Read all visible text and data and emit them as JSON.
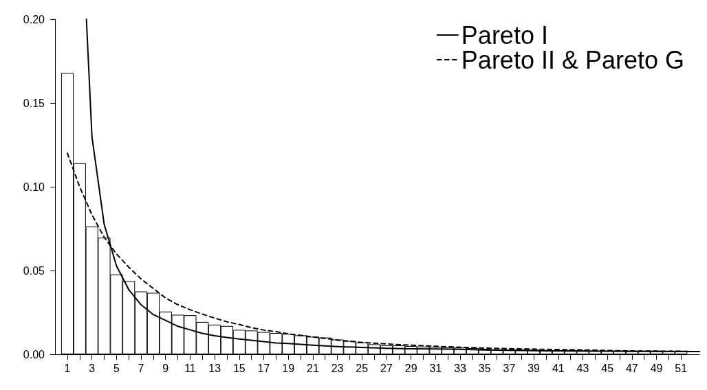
{
  "chart_data": {
    "type": "bar",
    "x": [
      1,
      2,
      3,
      4,
      5,
      6,
      7,
      8,
      9,
      10,
      11,
      12,
      13,
      14,
      15,
      16,
      17,
      18,
      19,
      20,
      21,
      22,
      23,
      24,
      25,
      26,
      27,
      28,
      29,
      30,
      31,
      32,
      33,
      34,
      35,
      36,
      37,
      38,
      39,
      40,
      41,
      42,
      43,
      44,
      45,
      46,
      47,
      48,
      49,
      50,
      51
    ],
    "xlim": [
      -0.4,
      52.5
    ],
    "xticks": [
      1,
      {
        "value": 2,
        "label": null
      },
      3,
      {
        "value": 4,
        "label": null
      },
      5,
      {
        "value": 6,
        "label": null
      },
      7,
      {
        "value": 8,
        "label": null
      },
      9,
      {
        "value": 10,
        "label": null
      },
      11,
      {
        "value": 12,
        "label": null
      },
      13,
      {
        "value": 14,
        "label": null
      },
      15,
      {
        "value": 16,
        "label": null
      },
      17,
      {
        "value": 18,
        "label": null
      },
      19,
      {
        "value": 20,
        "label": null
      },
      21,
      {
        "value": 22,
        "label": null
      },
      23,
      {
        "value": 24,
        "label": null
      },
      25,
      {
        "value": 26,
        "label": null
      },
      27,
      {
        "value": 28,
        "label": null
      },
      29,
      {
        "value": 30,
        "label": null
      },
      31,
      {
        "value": 32,
        "label": null
      },
      33,
      {
        "value": 34,
        "label": null
      },
      35,
      {
        "value": 36,
        "label": null
      },
      37,
      {
        "value": 38,
        "label": null
      },
      39,
      {
        "value": 40,
        "label": null
      },
      41,
      {
        "value": 42,
        "label": null
      },
      43,
      {
        "value": 44,
        "label": null
      },
      45,
      {
        "value": 46,
        "label": null
      },
      47,
      {
        "value": 48,
        "label": null
      },
      49,
      {
        "value": 50,
        "label": null
      },
      51
    ],
    "ylim": [
      0,
      0.2
    ],
    "yticks": [
      {
        "value": 0,
        "label": "0.00"
      },
      {
        "value": 0.05,
        "label": "0.05"
      },
      {
        "value": 0.1,
        "label": "0.10"
      },
      {
        "value": 0.15,
        "label": "0.15"
      },
      {
        "value": 0.2,
        "label": "0.20"
      }
    ],
    "grid": false,
    "legend": "top right",
    "series": [
      {
        "color": "#ffffff",
        "values": [
          0.168,
          0.114,
          0.0763,
          0.0696,
          0.0477,
          0.0438,
          0.0375,
          0.0367,
          0.0255,
          0.0236,
          0.0233,
          0.0193,
          0.0177,
          0.0169,
          0.0146,
          0.0142,
          0.0133,
          0.0127,
          0.0122,
          0.0113,
          0.0105,
          0.01,
          0.0088,
          0.008,
          0.007,
          0.006,
          0.0053,
          0.0053,
          0.0049,
          0.0046,
          0.0044,
          0.004,
          0.004,
          0.0037,
          0.0033,
          0.003,
          0.0029,
          0.0028,
          0.0027,
          0.0025,
          0.0024,
          0.0024,
          0.0023,
          0.0021,
          0.0021,
          0.002,
          0.0019,
          0.0019,
          0.0018,
          0.0018,
          0.0017
        ]
      },
      {
        "type": "line",
        "name": "Pareto I",
        "color": "#000000",
        "line_style": "solid",
        "x": [
          2.55,
          3,
          4,
          5,
          6,
          7,
          8,
          9,
          10,
          11,
          12,
          13,
          14,
          15,
          17,
          18,
          19,
          21,
          23,
          25,
          27,
          29,
          31,
          33,
          35,
          37,
          40,
          45,
          52.5
        ],
        "values": [
          0.2,
          0.13,
          0.0775,
          0.0528,
          0.0386,
          0.0296,
          0.0237,
          0.0202,
          0.0167,
          0.0146,
          0.0125,
          0.0111,
          0.01,
          0.0091,
          0.0076,
          0.0068,
          0.0065,
          0.0054,
          0.0046,
          0.0041,
          0.0036,
          0.0033,
          0.0032,
          0.003,
          0.0026,
          0.0024,
          0.0021,
          0.0018,
          0.0016
        ]
      },
      {
        "type": "line",
        "name": "Pareto II & Pareto G",
        "color": "#000000",
        "line_style": "dashed",
        "x": [
          1,
          2,
          3,
          4,
          5,
          6,
          7,
          8,
          9,
          10,
          11,
          12,
          13,
          14,
          15,
          16,
          17,
          18,
          19,
          21,
          23,
          25,
          27,
          29,
          31,
          33,
          35,
          38,
          43,
          47,
          51,
          52.5
        ],
        "values": [
          0.12,
          0.1,
          0.0833,
          0.0698,
          0.0599,
          0.052,
          0.045,
          0.0393,
          0.0336,
          0.0296,
          0.0266,
          0.024,
          0.0216,
          0.0194,
          0.0178,
          0.0159,
          0.0145,
          0.0135,
          0.0122,
          0.0104,
          0.0085,
          0.0071,
          0.0062,
          0.0054,
          0.0048,
          0.0042,
          0.0037,
          0.0032,
          0.0026,
          0.002,
          0.0018,
          0.0016
        ]
      }
    ]
  }
}
